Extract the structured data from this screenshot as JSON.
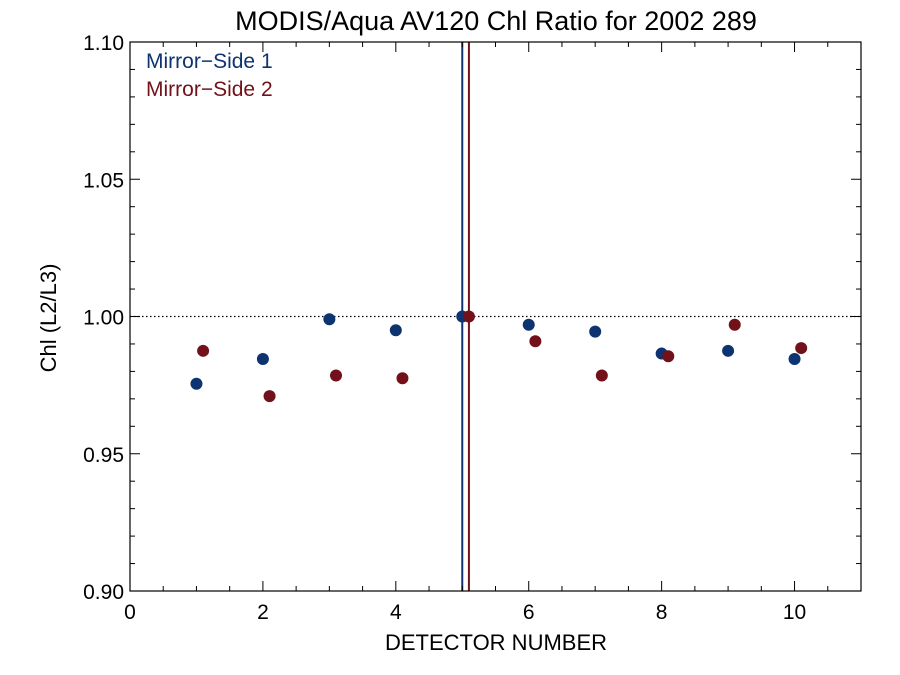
{
  "chart_data": {
    "type": "scatter",
    "title": "MODIS/Aqua AV120 Chl Ratio for 2002 289",
    "xlabel": "DETECTOR NUMBER",
    "ylabel": "Chl (L2/L3)",
    "xlim": [
      0,
      11
    ],
    "ylim": [
      0.9,
      1.1
    ],
    "x_ticks": [
      0,
      2,
      4,
      6,
      8,
      10
    ],
    "x_tick_labels": [
      "0",
      "2",
      "4",
      "6",
      "8",
      "10"
    ],
    "y_ticks": [
      0.9,
      0.95,
      1.0,
      1.05,
      1.1
    ],
    "y_tick_labels": [
      "0.90",
      "0.95",
      "1.00",
      "1.05",
      "1.10"
    ],
    "reference_line": {
      "y": 1.0,
      "style": "dotted"
    },
    "legend_position": "top-left",
    "series": [
      {
        "name": "Mirror−Side 1",
        "color": "#0d3370",
        "x": [
          1,
          2,
          3,
          4,
          5,
          6,
          7,
          8,
          9,
          10
        ],
        "y": [
          0.9755,
          0.9845,
          0.999,
          0.995,
          1.0,
          0.997,
          0.9945,
          0.9865,
          0.9875,
          0.9845
        ],
        "vline": 5.0
      },
      {
        "name": "Mirror−Side 2",
        "color": "#72111a",
        "x": [
          1.1,
          2.1,
          3.1,
          4.1,
          5.1,
          6.1,
          7.1,
          8.1,
          9.1,
          10.1
        ],
        "y": [
          0.9875,
          0.971,
          0.9785,
          0.9775,
          1.0,
          0.991,
          0.9785,
          0.9855,
          0.997,
          0.9885
        ],
        "vline": 5.1
      }
    ]
  }
}
